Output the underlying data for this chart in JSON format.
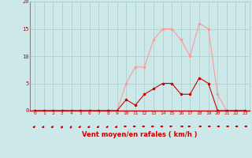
{
  "x_labels": [
    0,
    1,
    2,
    3,
    4,
    5,
    6,
    7,
    8,
    9,
    10,
    11,
    12,
    13,
    14,
    15,
    16,
    17,
    18,
    19,
    20,
    21,
    22,
    23
  ],
  "moyenne": [
    0,
    0,
    0,
    0,
    0,
    0,
    0,
    0,
    0,
    0,
    2,
    1,
    3,
    4,
    5,
    5,
    3,
    3,
    6,
    5,
    0,
    0,
    0,
    0
  ],
  "rafales": [
    0,
    0,
    0,
    0,
    0,
    0,
    0,
    0,
    0,
    0,
    5,
    8,
    8,
    13,
    15,
    15,
    13,
    10,
    16,
    15,
    3,
    0,
    0,
    0
  ],
  "bg_color": "#cce8e8",
  "grid_color": "#aacccc",
  "line_dark": "#cc0000",
  "line_light": "#ff9999",
  "axis_label": "Vent moyen/en rafales ( km/h )",
  "ylim": [
    0,
    20
  ],
  "yticks": [
    0,
    5,
    10,
    15,
    20
  ],
  "wind_dirs": [
    225,
    225,
    225,
    202,
    202,
    225,
    225,
    225,
    225,
    225,
    270,
    270,
    270,
    270,
    270,
    270,
    90,
    270,
    90,
    90,
    90,
    90,
    90,
    90
  ]
}
